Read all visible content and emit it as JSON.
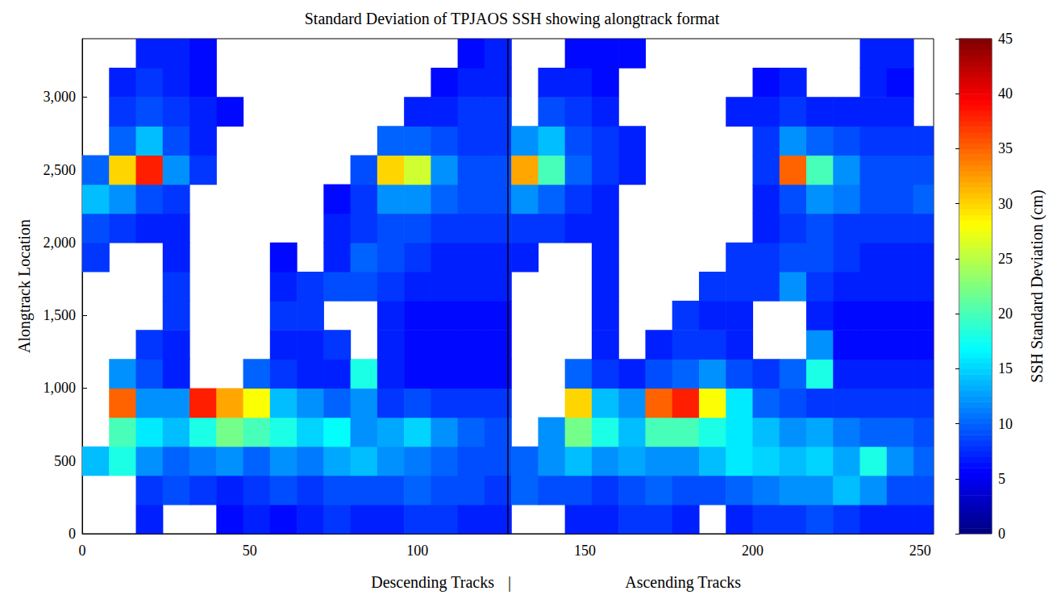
{
  "chart_data": {
    "type": "heatmap",
    "title": "Standard Deviation of TPJAOS SSH showing alongtrack format",
    "ylabel": "Alongtrack Location",
    "annotations": [
      "Descending Tracks",
      "|",
      "Ascending Tracks"
    ],
    "xlim": [
      0,
      254
    ],
    "xticks": [
      0,
      50,
      100,
      150,
      200,
      250
    ],
    "ylim": [
      0,
      3400
    ],
    "yticks": [
      0,
      500,
      1000,
      1500,
      2000,
      2500,
      3000
    ],
    "divider": 127,
    "x_bins": [
      0,
      8,
      16,
      24,
      32,
      40,
      48,
      56,
      64,
      72,
      80,
      88,
      96,
      104,
      112,
      120,
      128,
      136,
      144,
      152,
      160,
      168,
      176,
      184,
      192,
      200,
      208,
      216,
      224,
      232,
      240,
      248,
      256
    ],
    "y_bins": [
      0,
      200,
      400,
      600,
      800,
      1000,
      1200,
      1400,
      1600,
      1800,
      2000,
      2200,
      2400,
      2600,
      2800,
      3000,
      3200,
      3400
    ],
    "values": [
      [
        null,
        null,
        7,
        null,
        null,
        6,
        7,
        6,
        7,
        8,
        7,
        7,
        8,
        8,
        7,
        7,
        null,
        null,
        7,
        7,
        8,
        8,
        7,
        null,
        7,
        8,
        8,
        9,
        8,
        7,
        7,
        7
      ],
      [
        null,
        null,
        8,
        9,
        8,
        7,
        8,
        9,
        8,
        9,
        9,
        9,
        10,
        9,
        9,
        8,
        10,
        9,
        9,
        8,
        9,
        10,
        9,
        9,
        10,
        11,
        12,
        12,
        14,
        12,
        9,
        9
      ],
      [
        14,
        18,
        12,
        10,
        11,
        12,
        10,
        12,
        11,
        13,
        14,
        12,
        11,
        10,
        9,
        9,
        10,
        12,
        14,
        12,
        13,
        12,
        12,
        14,
        16,
        15,
        14,
        15,
        13,
        18,
        12,
        10
      ],
      [
        null,
        20,
        16,
        14,
        18,
        22,
        20,
        18,
        15,
        17,
        12,
        13,
        15,
        12,
        10,
        9,
        null,
        12,
        22,
        18,
        14,
        20,
        20,
        18,
        16,
        14,
        12,
        13,
        11,
        10,
        10,
        9
      ],
      [
        null,
        35,
        12,
        12,
        38,
        32,
        28,
        14,
        12,
        10,
        12,
        8,
        9,
        8,
        8,
        8,
        null,
        null,
        30,
        14,
        12,
        35,
        38,
        28,
        16,
        10,
        9,
        8,
        8,
        8,
        8,
        8
      ],
      [
        null,
        12,
        9,
        7,
        null,
        null,
        10,
        8,
        7,
        7,
        18,
        7,
        6,
        6,
        6,
        6,
        null,
        null,
        10,
        8,
        7,
        9,
        10,
        12,
        9,
        8,
        10,
        18,
        7,
        7,
        7,
        7
      ],
      [
        null,
        null,
        8,
        7,
        null,
        null,
        null,
        7,
        7,
        8,
        null,
        7,
        6,
        6,
        6,
        6,
        null,
        null,
        null,
        7,
        null,
        7,
        8,
        8,
        7,
        null,
        null,
        12,
        6,
        6,
        6,
        6
      ],
      [
        null,
        null,
        null,
        8,
        null,
        null,
        null,
        8,
        8,
        null,
        null,
        7,
        6,
        6,
        6,
        6,
        null,
        null,
        null,
        7,
        null,
        null,
        8,
        7,
        7,
        null,
        null,
        7,
        6,
        6,
        6,
        6
      ],
      [
        null,
        null,
        null,
        8,
        null,
        null,
        null,
        7,
        8,
        9,
        9,
        8,
        7,
        7,
        7,
        7,
        null,
        null,
        null,
        7,
        null,
        null,
        null,
        8,
        8,
        8,
        12,
        8,
        7,
        7,
        7,
        7
      ],
      [
        8,
        null,
        null,
        7,
        null,
        null,
        null,
        6,
        null,
        7,
        10,
        9,
        8,
        7,
        7,
        7,
        7,
        null,
        null,
        7,
        null,
        null,
        null,
        null,
        8,
        8,
        9,
        9,
        8,
        7,
        7,
        7
      ],
      [
        9,
        8,
        7,
        7,
        null,
        null,
        null,
        null,
        null,
        7,
        8,
        9,
        9,
        8,
        8,
        8,
        8,
        8,
        7,
        7,
        null,
        null,
        null,
        null,
        null,
        7,
        8,
        9,
        8,
        8,
        8,
        8
      ],
      [
        14,
        12,
        9,
        8,
        null,
        null,
        null,
        null,
        null,
        6,
        8,
        12,
        12,
        10,
        9,
        9,
        12,
        10,
        8,
        7,
        null,
        null,
        null,
        null,
        null,
        7,
        9,
        12,
        11,
        9,
        9,
        10
      ],
      [
        10,
        30,
        38,
        12,
        8,
        null,
        null,
        null,
        null,
        null,
        9,
        30,
        26,
        12,
        9,
        9,
        32,
        20,
        10,
        8,
        7,
        null,
        null,
        null,
        null,
        8,
        35,
        20,
        12,
        9,
        9,
        9
      ],
      [
        null,
        10,
        14,
        9,
        7,
        null,
        null,
        null,
        null,
        null,
        null,
        10,
        10,
        9,
        8,
        8,
        12,
        14,
        9,
        8,
        7,
        null,
        null,
        null,
        null,
        8,
        12,
        10,
        9,
        8,
        8,
        8
      ],
      [
        null,
        8,
        9,
        8,
        7,
        6,
        null,
        null,
        null,
        null,
        null,
        null,
        7,
        7,
        8,
        8,
        null,
        9,
        8,
        7,
        null,
        null,
        null,
        null,
        7,
        7,
        8,
        7,
        7,
        7,
        7,
        null
      ],
      [
        null,
        7,
        8,
        7,
        6,
        null,
        null,
        null,
        null,
        null,
        null,
        null,
        null,
        6,
        7,
        7,
        null,
        7,
        7,
        6,
        null,
        null,
        null,
        null,
        null,
        6,
        7,
        null,
        null,
        7,
        6,
        null
      ],
      [
        null,
        null,
        7,
        7,
        6,
        null,
        null,
        null,
        null,
        null,
        null,
        null,
        null,
        null,
        6,
        7,
        null,
        null,
        6,
        6,
        6,
        null,
        null,
        null,
        null,
        null,
        null,
        null,
        null,
        7,
        7,
        null
      ]
    ],
    "colorbar_label": "SSH Standard Deviation (cm)",
    "colorbar_range": [
      0,
      45
    ],
    "colorbar_ticks": [
      0,
      5,
      10,
      15,
      20,
      25,
      30,
      35,
      40,
      45
    ]
  }
}
